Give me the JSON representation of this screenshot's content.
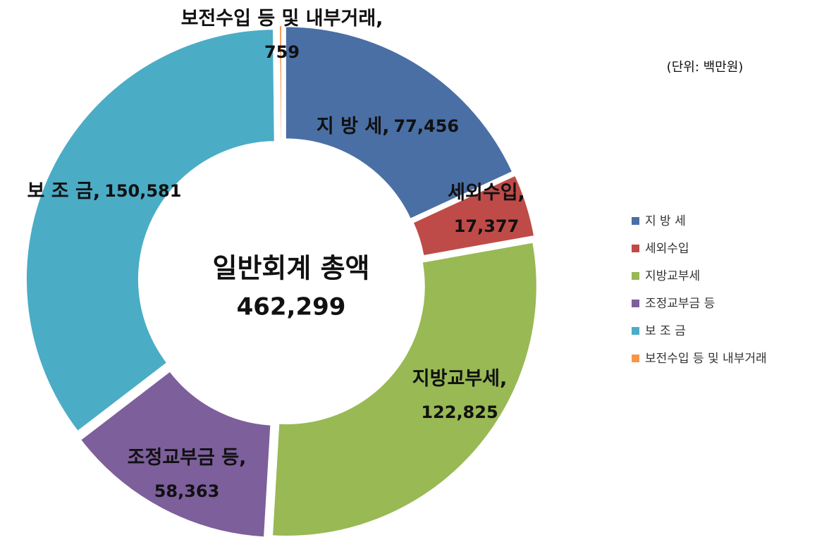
{
  "chart_data": {
    "type": "donut",
    "unit_note": "(단위: 백만원)",
    "center_title": "일반회계 총액",
    "center_value": {
      "value": 462299,
      "label": "462,299"
    },
    "categories": [
      "지 방 세",
      "세외수입",
      "지방교부세",
      "조정교부금 등",
      "보 조 금",
      "보전수입 등 및 내부거래"
    ],
    "values": [
      77456,
      17377,
      122825,
      58363,
      150581,
      759
    ],
    "value_labels": [
      "77,456",
      "17,377",
      "122,825",
      "58,363",
      "150,581",
      "759"
    ],
    "label_separator": ",",
    "colors": [
      "#4a6fa5",
      "#be4b48",
      "#98b954",
      "#7d5f9c",
      "#4bacc6",
      "#f79646"
    ],
    "legend": "right"
  }
}
